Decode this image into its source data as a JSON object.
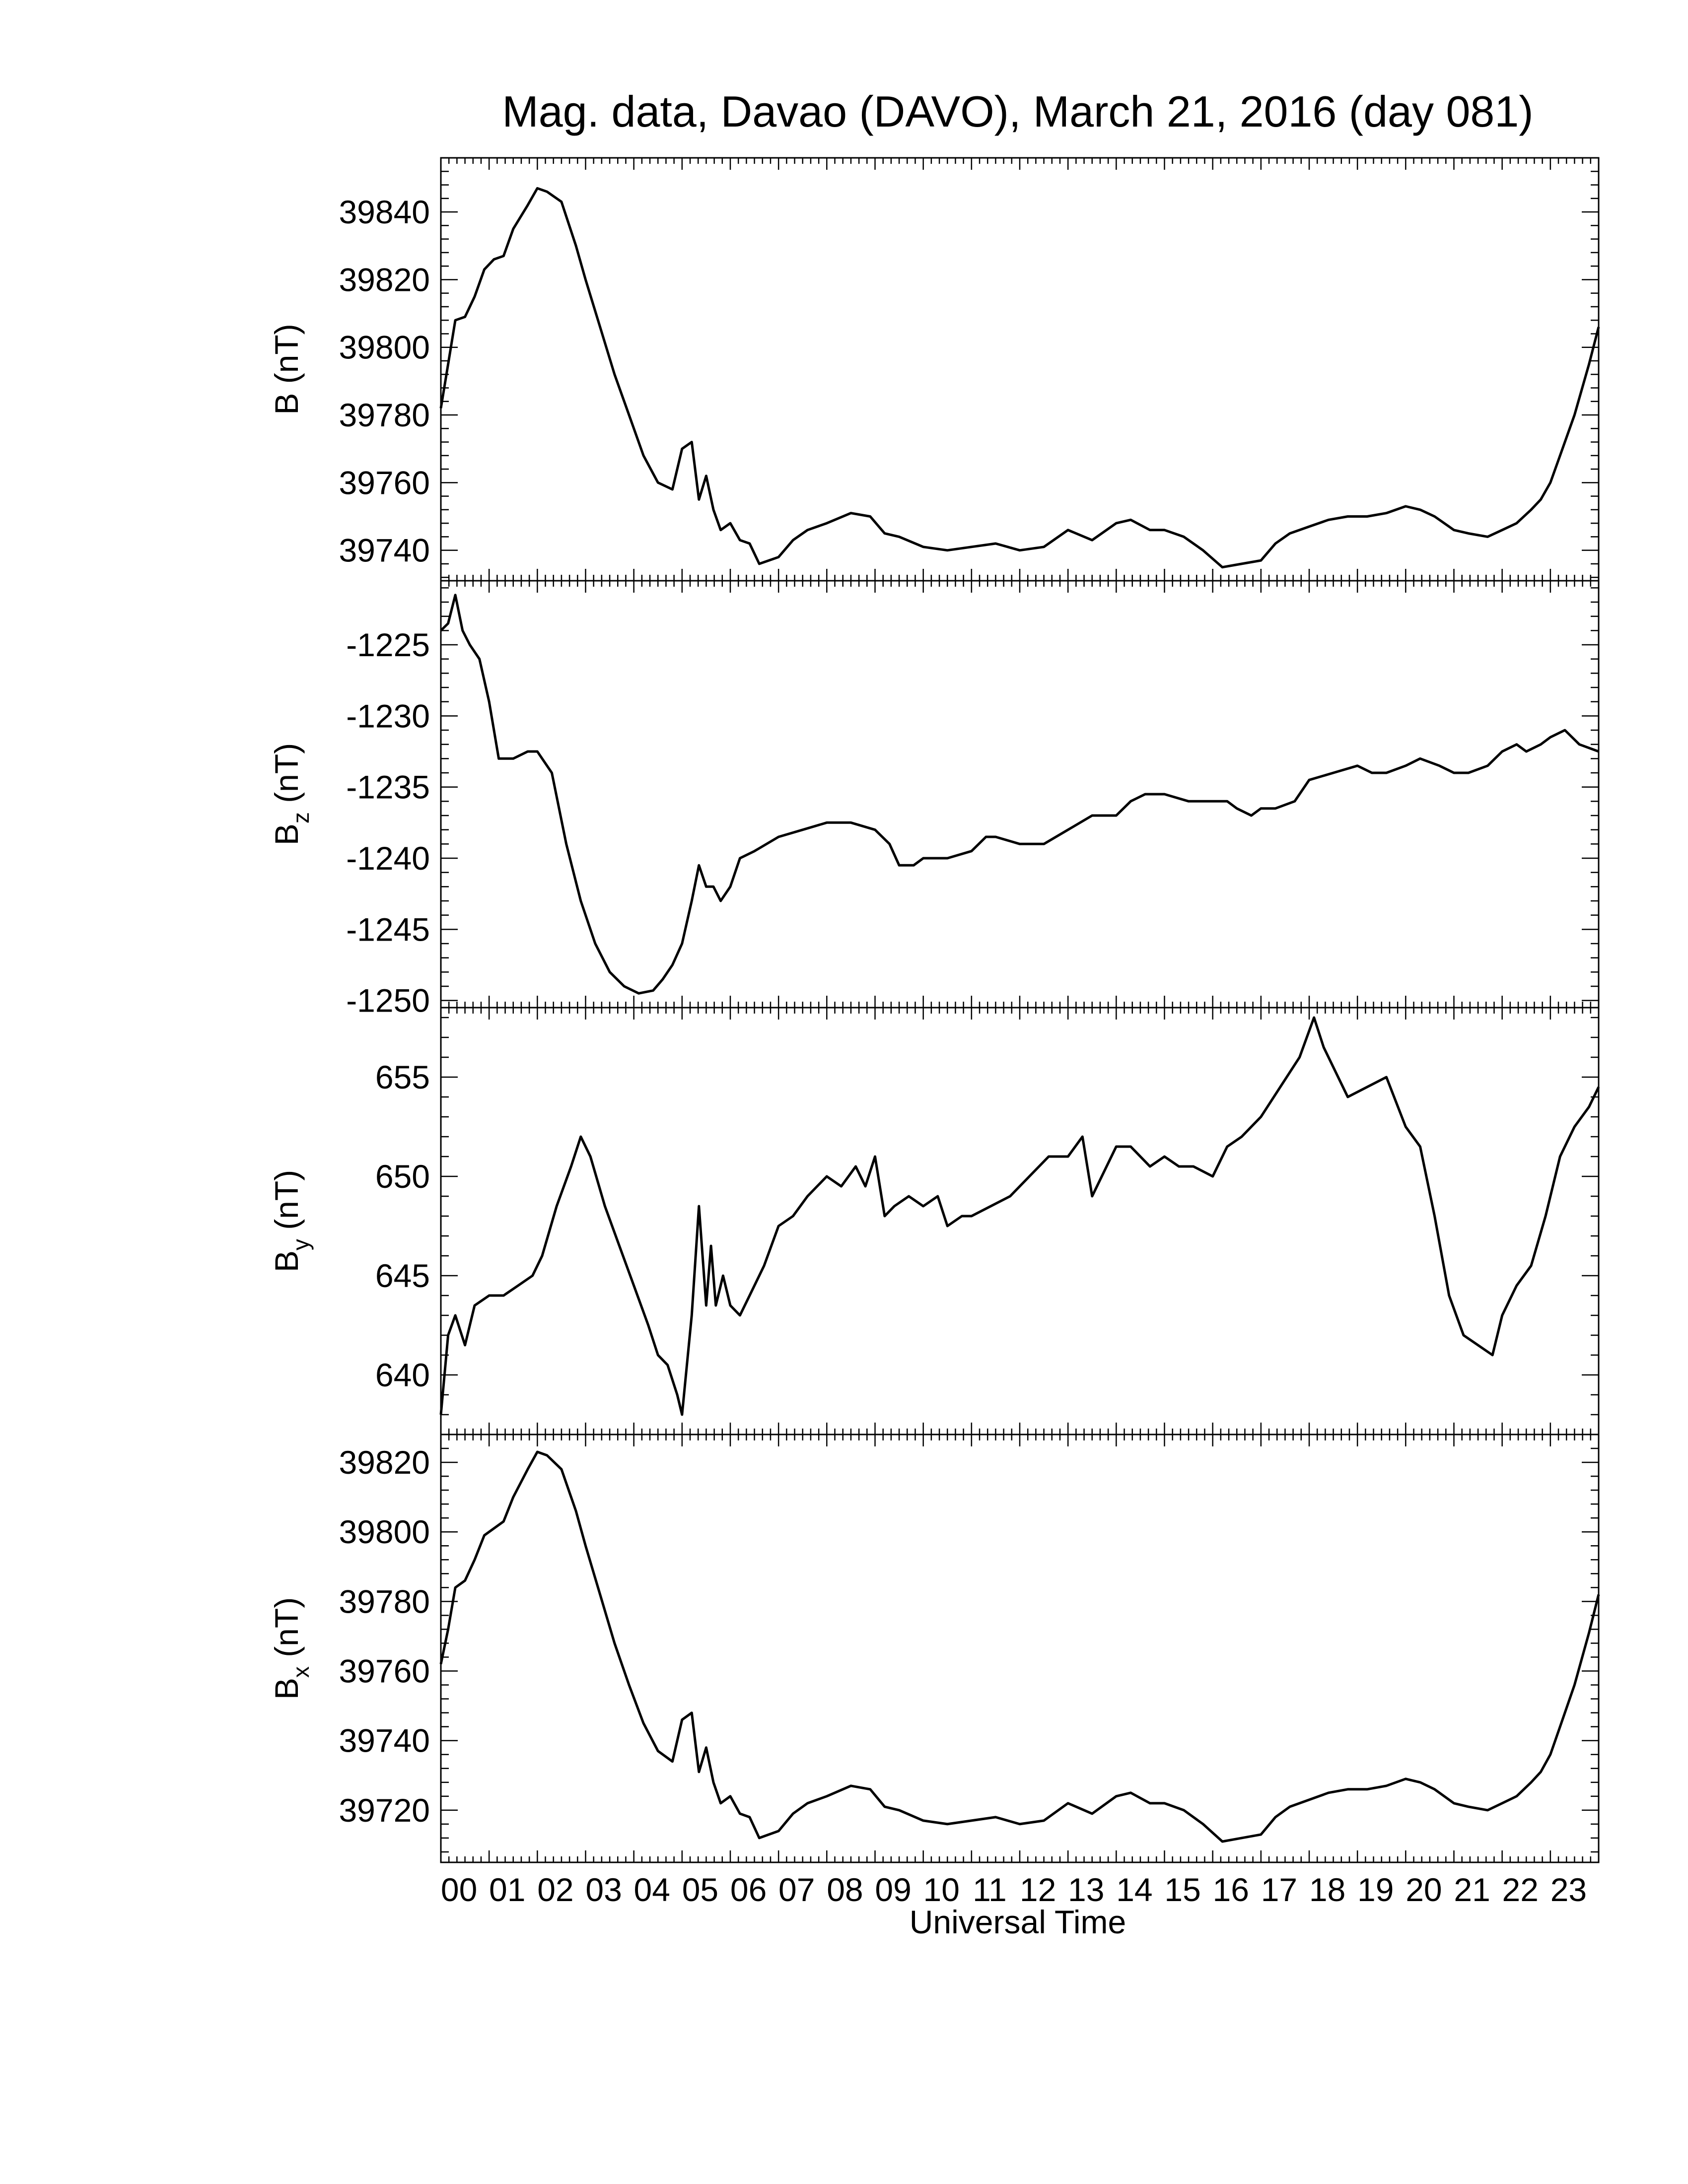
{
  "chart_data": {
    "type": "line",
    "title": "Mag. data, Davao (DAVO), March 21, 2016 (day 081)",
    "xlabel": "Universal Time",
    "x_tick_labels": [
      "00",
      "01",
      "02",
      "03",
      "04",
      "05",
      "06",
      "07",
      "08",
      "09",
      "10",
      "11",
      "12",
      "13",
      "14",
      "15",
      "16",
      "17",
      "18",
      "19",
      "20",
      "21",
      "22",
      "23"
    ],
    "x_range_hours": [
      0,
      24
    ],
    "grid": false,
    "line_color": "#000000",
    "panels": [
      {
        "ylabel_main": "B",
        "ylabel_sub": "",
        "ylabel_unit": " (nT)",
        "ylim": [
          39731,
          39856
        ],
        "yticks": [
          39740,
          39760,
          39780,
          39800,
          39820,
          39840
        ],
        "y_tick_labels": [
          "39740",
          "39760",
          "39780",
          "39800",
          "39820",
          "39840"
        ],
        "series": [
          {
            "x": [
              0,
              0.15,
              0.3,
              0.5,
              0.7,
              0.9,
              1.1,
              1.3,
              1.5,
              1.8,
              2.0,
              2.2,
              2.5,
              2.8,
              3.0,
              3.3,
              3.6,
              3.9,
              4.2,
              4.5,
              4.8,
              5.0,
              5.2,
              5.35,
              5.5,
              5.65,
              5.8,
              6.0,
              6.2,
              6.4,
              6.6,
              6.8,
              7.0,
              7.3,
              7.6,
              8.0,
              8.5,
              8.9,
              9.2,
              9.5,
              10.0,
              10.5,
              11.0,
              11.5,
              12.0,
              12.5,
              13.0,
              13.5,
              14.0,
              14.3,
              14.7,
              15.0,
              15.4,
              15.8,
              16.2,
              16.6,
              17.0,
              17.3,
              17.6,
              18.0,
              18.4,
              18.8,
              19.2,
              19.6,
              20.0,
              20.3,
              20.6,
              21.0,
              21.3,
              21.7,
              22.0,
              22.3,
              22.6,
              22.8,
              23.0,
              23.2,
              23.5,
              23.8,
              24.0
            ],
            "y": [
              39782,
              39795,
              39808,
              39809,
              39815,
              39823,
              39826,
              39827,
              39835,
              39842,
              39847,
              39846,
              39843,
              39830,
              39820,
              39806,
              39792,
              39780,
              39768,
              39760,
              39758,
              39770,
              39772,
              39755,
              39762,
              39752,
              39746,
              39748,
              39743,
              39742,
              39736,
              39737,
              39738,
              39743,
              39746,
              39748,
              39751,
              39750,
              39745,
              39744,
              39741,
              39740,
              39741,
              39742,
              39740,
              39741,
              39746,
              39743,
              39748,
              39749,
              39746,
              39746,
              39744,
              39740,
              39735,
              39736,
              39737,
              39742,
              39745,
              39747,
              39749,
              39750,
              39750,
              39751,
              39753,
              39752,
              39750,
              39746,
              39745,
              39744,
              39746,
              39748,
              39752,
              39755,
              39760,
              39768,
              39780,
              39795,
              39806
            ]
          }
        ]
      },
      {
        "ylabel_main": "B",
        "ylabel_sub": "z",
        "ylabel_unit": " (nT)",
        "ylim": [
          -1250.5,
          -1220.5
        ],
        "yticks": [
          -1250,
          -1245,
          -1240,
          -1235,
          -1230,
          -1225
        ],
        "y_tick_labels": [
          "-1250",
          "-1245",
          "-1240",
          "-1235",
          "-1230",
          "-1225"
        ],
        "series": [
          {
            "x": [
              0,
              0.15,
              0.3,
              0.45,
              0.6,
              0.8,
              1.0,
              1.2,
              1.5,
              1.8,
              2.0,
              2.3,
              2.6,
              2.9,
              3.2,
              3.5,
              3.8,
              4.1,
              4.4,
              4.6,
              4.8,
              5.0,
              5.2,
              5.35,
              5.5,
              5.65,
              5.8,
              6.0,
              6.2,
              6.5,
              7.0,
              7.5,
              8.0,
              8.5,
              9.0,
              9.3,
              9.5,
              9.8,
              10.0,
              10.5,
              11.0,
              11.3,
              11.5,
              12.0,
              12.5,
              13.0,
              13.5,
              14.0,
              14.3,
              14.6,
              15.0,
              15.5,
              16.0,
              16.3,
              16.5,
              16.8,
              17.0,
              17.3,
              17.7,
              18.0,
              18.5,
              19.0,
              19.3,
              19.6,
              20.0,
              20.3,
              20.7,
              21.0,
              21.3,
              21.7,
              22.0,
              22.3,
              22.5,
              22.8,
              23.0,
              23.3,
              23.6,
              24.0
            ],
            "y": [
              -1224,
              -1223.5,
              -1221.5,
              -1224,
              -1225,
              -1226,
              -1229,
              -1233,
              -1233,
              -1232.5,
              -1232.5,
              -1234,
              -1239,
              -1243,
              -1246,
              -1248,
              -1249,
              -1249.5,
              -1249.3,
              -1248.5,
              -1247.5,
              -1246,
              -1243,
              -1240.5,
              -1242,
              -1242,
              -1243,
              -1242,
              -1240,
              -1239.5,
              -1238.5,
              -1238,
              -1237.5,
              -1237.5,
              -1238,
              -1239,
              -1240.5,
              -1240.5,
              -1240,
              -1240,
              -1239.5,
              -1238.5,
              -1238.5,
              -1239,
              -1239,
              -1238,
              -1237,
              -1237,
              -1236,
              -1235.5,
              -1235.5,
              -1236,
              -1236,
              -1236,
              -1236.5,
              -1237,
              -1236.5,
              -1236.5,
              -1236,
              -1234.5,
              -1234,
              -1233.5,
              -1234,
              -1234,
              -1233.5,
              -1233,
              -1233.5,
              -1234,
              -1234,
              -1233.5,
              -1232.5,
              -1232,
              -1232.5,
              -1232,
              -1231.5,
              -1231,
              -1232,
              -1232.5
            ]
          }
        ]
      },
      {
        "ylabel_main": "B",
        "ylabel_sub": "y",
        "ylabel_unit": " (nT)",
        "ylim": [
          637,
          658.5
        ],
        "yticks": [
          640,
          645,
          650,
          655
        ],
        "y_tick_labels": [
          "640",
          "645",
          "650",
          "655"
        ],
        "series": [
          {
            "x": [
              0,
              0.15,
              0.3,
              0.5,
              0.7,
              1.0,
              1.3,
              1.6,
              1.9,
              2.1,
              2.4,
              2.7,
              2.9,
              3.1,
              3.4,
              3.7,
              4.0,
              4.3,
              4.5,
              4.7,
              4.9,
              5.0,
              5.2,
              5.35,
              5.5,
              5.6,
              5.7,
              5.85,
              6.0,
              6.2,
              6.4,
              6.7,
              7.0,
              7.3,
              7.6,
              8.0,
              8.3,
              8.6,
              8.8,
              9.0,
              9.2,
              9.4,
              9.7,
              10.0,
              10.3,
              10.5,
              10.8,
              11.0,
              11.4,
              11.8,
              12.2,
              12.6,
              13.0,
              13.3,
              13.5,
              13.7,
              14.0,
              14.3,
              14.7,
              15.0,
              15.3,
              15.6,
              16.0,
              16.3,
              16.6,
              17.0,
              17.4,
              17.8,
              18.1,
              18.3,
              18.5,
              18.8,
              19.2,
              19.6,
              20.0,
              20.3,
              20.6,
              20.9,
              21.2,
              21.5,
              21.8,
              22.0,
              22.3,
              22.6,
              22.9,
              23.2,
              23.5,
              23.8,
              24.0
            ],
            "y": [
              638,
              642,
              643,
              641.5,
              643.5,
              644,
              644,
              644.5,
              645,
              646,
              648.5,
              650.5,
              652,
              651,
              648.5,
              646.5,
              644.5,
              642.5,
              641,
              640.5,
              639,
              638,
              643,
              648.5,
              643.5,
              646.5,
              643.5,
              645,
              643.5,
              643,
              644,
              645.5,
              647.5,
              648,
              649,
              650,
              649.5,
              650.5,
              649.5,
              651,
              648,
              648.5,
              649,
              648.5,
              649,
              647.5,
              648,
              648,
              648.5,
              649,
              650,
              651,
              651,
              652,
              649,
              650,
              651.5,
              651.5,
              650.5,
              651,
              650.5,
              650.5,
              650,
              651.5,
              652,
              653,
              654.5,
              656,
              658,
              656.5,
              655.5,
              654,
              654.5,
              655,
              652.5,
              651.5,
              648,
              644,
              642,
              641.5,
              641,
              643,
              644.5,
              645.5,
              648,
              651,
              652.5,
              653.5,
              654.5
            ]
          }
        ]
      },
      {
        "ylabel_main": "B",
        "ylabel_sub": "x",
        "ylabel_unit": " (nT)",
        "ylim": [
          39705,
          39828
        ],
        "yticks": [
          39720,
          39740,
          39760,
          39780,
          39800,
          39820
        ],
        "y_tick_labels": [
          "39720",
          "39740",
          "39760",
          "39780",
          "39800",
          "39820"
        ],
        "series": [
          {
            "x": [
              0,
              0.15,
              0.3,
              0.5,
              0.7,
              0.9,
              1.1,
              1.3,
              1.5,
              1.8,
              2.0,
              2.2,
              2.5,
              2.8,
              3.0,
              3.3,
              3.6,
              3.9,
              4.2,
              4.5,
              4.8,
              5.0,
              5.2,
              5.35,
              5.5,
              5.65,
              5.8,
              6.0,
              6.2,
              6.4,
              6.6,
              6.8,
              7.0,
              7.3,
              7.6,
              8.0,
              8.5,
              8.9,
              9.2,
              9.5,
              10.0,
              10.5,
              11.0,
              11.5,
              12.0,
              12.5,
              13.0,
              13.5,
              14.0,
              14.3,
              14.7,
              15.0,
              15.4,
              15.8,
              16.2,
              16.6,
              17.0,
              17.3,
              17.6,
              18.0,
              18.4,
              18.8,
              19.2,
              19.6,
              20.0,
              20.3,
              20.6,
              21.0,
              21.3,
              21.7,
              22.0,
              22.3,
              22.6,
              22.8,
              23.0,
              23.2,
              23.5,
              23.8,
              24.0
            ],
            "y": [
              39762,
              39772,
              39784,
              39786,
              39792,
              39799,
              39801,
              39803,
              39810,
              39818,
              39823,
              39822,
              39818,
              39806,
              39796,
              39782,
              39768,
              39756,
              39745,
              39737,
              39734,
              39746,
              39748,
              39731,
              39738,
              39728,
              39722,
              39724,
              39719,
              39718,
              39712,
              39713,
              39714,
              39719,
              39722,
              39724,
              39727,
              39726,
              39721,
              39720,
              39717,
              39716,
              39717,
              39718,
              39716,
              39717,
              39722,
              39719,
              39724,
              39725,
              39722,
              39722,
              39720,
              39716,
              39711,
              39712,
              39713,
              39718,
              39721,
              39723,
              39725,
              39726,
              39726,
              39727,
              39729,
              39728,
              39726,
              39722,
              39721,
              39720,
              39722,
              39724,
              39728,
              39731,
              39736,
              39744,
              39756,
              39771,
              39782
            ]
          }
        ]
      }
    ]
  }
}
